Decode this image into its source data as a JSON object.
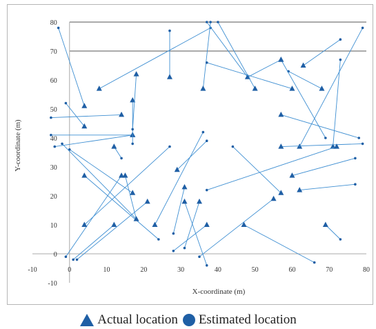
{
  "chart_data": {
    "type": "scatter",
    "title": "",
    "xlabel": "X-coordinate (m)",
    "ylabel": "Y-coordinate (m)",
    "xlim": [
      -10,
      80
    ],
    "ylim": [
      -10,
      80
    ],
    "xticks": [
      -10,
      0,
      10,
      20,
      30,
      40,
      50,
      60,
      70,
      80
    ],
    "yticks": [
      -10,
      0,
      10,
      20,
      30,
      40,
      50,
      60,
      70,
      80
    ],
    "hlines": [
      70,
      80
    ],
    "grid": false,
    "legend_position": "bottom",
    "colors": {
      "marker": "#1f5fa5",
      "line": "#3f8fd2"
    },
    "series": [
      {
        "name": "Actual location",
        "marker": "triangle"
      },
      {
        "name": "Estimated location",
        "marker": "circle"
      }
    ],
    "pairs": [
      {
        "actual": [
          4,
          51
        ],
        "estimated": [
          -3,
          78
        ]
      },
      {
        "actual": [
          8,
          57
        ],
        "estimated": [
          38,
          78
        ]
      },
      {
        "actual": [
          4,
          44
        ],
        "estimated": [
          -1,
          52
        ]
      },
      {
        "actual": [
          14,
          48
        ],
        "estimated": [
          -5,
          47
        ]
      },
      {
        "actual": [
          17,
          41
        ],
        "estimated": [
          -5,
          41
        ]
      },
      {
        "actual": [
          17,
          41
        ],
        "estimated": [
          -4,
          37
        ]
      },
      {
        "actual": [
          17,
          53
        ],
        "estimated": [
          17,
          38
        ]
      },
      {
        "actual": [
          18,
          62
        ],
        "estimated": [
          17,
          43
        ]
      },
      {
        "actual": [
          27,
          61
        ],
        "estimated": [
          27,
          77
        ]
      },
      {
        "actual": [
          36,
          57
        ],
        "estimated": [
          38,
          80
        ]
      },
      {
        "actual": [
          48,
          61
        ],
        "estimated": [
          37,
          80
        ]
      },
      {
        "actual": [
          50,
          57
        ],
        "estimated": [
          40,
          80
        ]
      },
      {
        "actual": [
          60,
          57
        ],
        "estimated": [
          37,
          66
        ]
      },
      {
        "actual": [
          57,
          67
        ],
        "estimated": [
          48,
          61
        ]
      },
      {
        "actual": [
          63,
          65
        ],
        "estimated": [
          73,
          74
        ]
      },
      {
        "actual": [
          68,
          57
        ],
        "estimated": [
          59,
          63
        ]
      },
      {
        "actual": [
          57,
          67
        ],
        "estimated": [
          69,
          40
        ]
      },
      {
        "actual": [
          57,
          48
        ],
        "estimated": [
          78,
          40
        ]
      },
      {
        "actual": [
          62,
          37
        ],
        "estimated": [
          79,
          78
        ]
      },
      {
        "actual": [
          71,
          37
        ],
        "estimated": [
          73,
          67
        ]
      },
      {
        "actual": [
          57,
          37
        ],
        "estimated": [
          79,
          38
        ]
      },
      {
        "actual": [
          4,
          27
        ],
        "estimated": [
          24,
          5
        ]
      },
      {
        "actual": [
          12,
          37
        ],
        "estimated": [
          14,
          33
        ]
      },
      {
        "actual": [
          14,
          27
        ],
        "estimated": [
          -1,
          -1
        ]
      },
      {
        "actual": [
          15,
          27
        ],
        "estimated": [
          18,
          12
        ]
      },
      {
        "actual": [
          17,
          21
        ],
        "estimated": [
          0,
          36
        ]
      },
      {
        "actual": [
          18,
          12
        ],
        "estimated": [
          -2,
          38
        ]
      },
      {
        "actual": [
          21,
          18
        ],
        "estimated": [
          2,
          -2
        ]
      },
      {
        "actual": [
          23,
          10
        ],
        "estimated": [
          36,
          42
        ]
      },
      {
        "actual": [
          4,
          10
        ],
        "estimated": [
          27,
          37
        ]
      },
      {
        "actual": [
          12,
          10
        ],
        "estimated": [
          1,
          -2
        ]
      },
      {
        "actual": [
          29,
          29
        ],
        "estimated": [
          37,
          39
        ]
      },
      {
        "actual": [
          31,
          23
        ],
        "estimated": [
          28,
          7
        ]
      },
      {
        "actual": [
          31,
          18
        ],
        "estimated": [
          37,
          -4
        ]
      },
      {
        "actual": [
          35,
          18
        ],
        "estimated": [
          31,
          2
        ]
      },
      {
        "actual": [
          37,
          10
        ],
        "estimated": [
          28,
          1
        ]
      },
      {
        "actual": [
          47,
          10
        ],
        "estimated": [
          66,
          -3
        ]
      },
      {
        "actual": [
          55,
          19
        ],
        "estimated": [
          35,
          -1
        ]
      },
      {
        "actual": [
          57,
          21
        ],
        "estimated": [
          44,
          37
        ]
      },
      {
        "actual": [
          60,
          27
        ],
        "estimated": [
          77,
          33
        ]
      },
      {
        "actual": [
          62,
          22
        ],
        "estimated": [
          77,
          24
        ]
      },
      {
        "actual": [
          72,
          37
        ],
        "estimated": [
          37,
          22
        ]
      },
      {
        "actual": [
          69,
          10
        ],
        "estimated": [
          73,
          5
        ]
      }
    ]
  },
  "legend": {
    "actual_label": "Actual location",
    "estimated_label": "Estimated location"
  }
}
